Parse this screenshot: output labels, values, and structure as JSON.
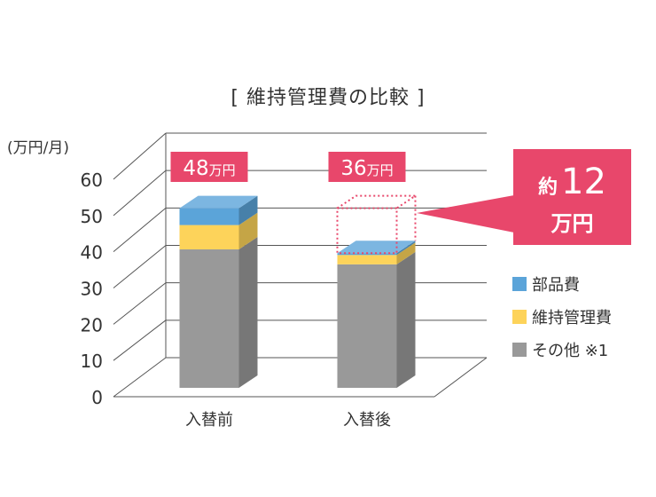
{
  "chart_data": {
    "type": "bar",
    "stacked": true,
    "title": "[ 維持管理費の比較 ]",
    "unit_label": "(万円/月)",
    "categories": [
      "入替前",
      "入替後"
    ],
    "yticks": [
      0,
      10,
      20,
      30,
      40,
      50,
      60
    ],
    "ylim": [
      0,
      60
    ],
    "series": [
      {
        "name": "その他 ※1",
        "values": [
          37,
          33
        ],
        "color": "#999999"
      },
      {
        "name": "維持管理費",
        "values": [
          6.5,
          2.5
        ],
        "color": "#fdd35a"
      },
      {
        "name": "部品費",
        "values": [
          4.5,
          0.5
        ],
        "color": "#5ba4d9"
      }
    ],
    "total_labels": [
      {
        "num": "48",
        "unit": "万円"
      },
      {
        "num": "36",
        "unit": "万円"
      }
    ],
    "callout": {
      "prefix": "約",
      "value": "12",
      "unit": "万円"
    },
    "accent_color": "#e8476b"
  }
}
